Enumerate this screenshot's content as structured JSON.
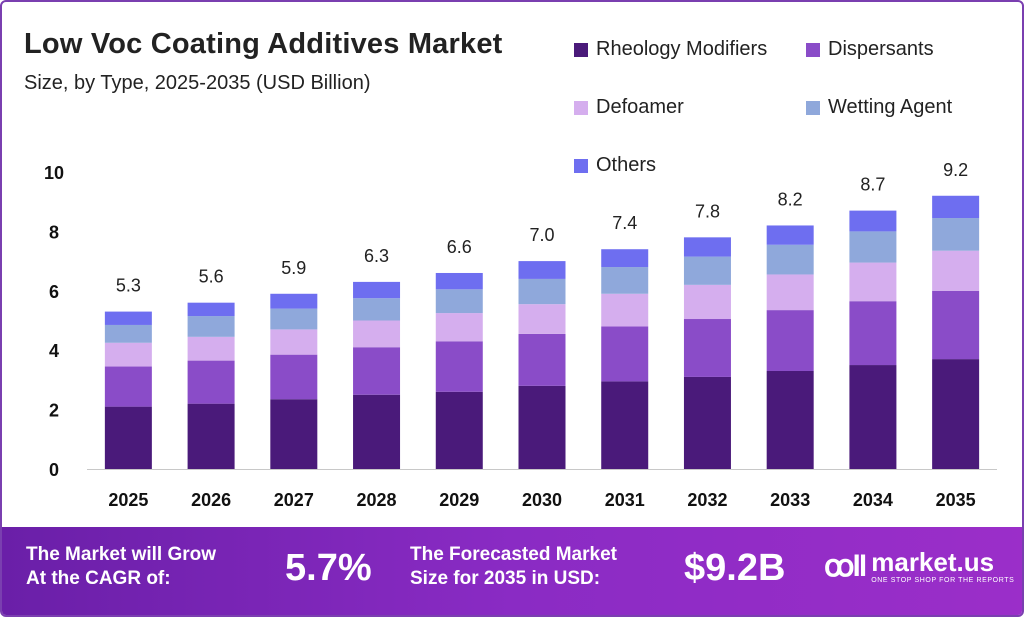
{
  "header": {
    "title": "Low Voc Coating Additives Market",
    "subtitle": "Size, by Type, 2025-2035 (USD Billion)"
  },
  "chart_data": {
    "type": "bar",
    "stacked": true,
    "categories": [
      "2025",
      "2026",
      "2027",
      "2028",
      "2029",
      "2030",
      "2031",
      "2032",
      "2033",
      "2034",
      "2035"
    ],
    "totals": [
      5.3,
      5.6,
      5.9,
      6.3,
      6.6,
      7.0,
      7.4,
      7.8,
      8.2,
      8.7,
      9.2
    ],
    "total_labels": [
      "5.3",
      "5.6",
      "5.9",
      "6.3",
      "6.6",
      "7.0",
      "7.4",
      "7.8",
      "8.2",
      "8.7",
      "9.2"
    ],
    "series": [
      {
        "name": "Rheology Modifiers",
        "color": "#4a1a7a",
        "values": [
          2.1,
          2.2,
          2.35,
          2.5,
          2.6,
          2.8,
          2.95,
          3.1,
          3.3,
          3.5,
          3.7
        ]
      },
      {
        "name": "Dispersants",
        "color": "#8a4cc8",
        "values": [
          1.35,
          1.45,
          1.5,
          1.6,
          1.7,
          1.75,
          1.85,
          1.95,
          2.05,
          2.15,
          2.3
        ]
      },
      {
        "name": "Defoamer",
        "color": "#d5aeee",
        "values": [
          0.8,
          0.8,
          0.85,
          0.9,
          0.95,
          1.0,
          1.1,
          1.15,
          1.2,
          1.3,
          1.35
        ]
      },
      {
        "name": "Wetting Agent",
        "color": "#8fa8db",
        "values": [
          0.6,
          0.7,
          0.7,
          0.75,
          0.8,
          0.85,
          0.9,
          0.95,
          1.0,
          1.05,
          1.1
        ]
      },
      {
        "name": "Others",
        "color": "#6e6ef0",
        "values": [
          0.45,
          0.45,
          0.5,
          0.55,
          0.55,
          0.6,
          0.6,
          0.65,
          0.65,
          0.7,
          0.75
        ]
      }
    ],
    "ylim": [
      0,
      10
    ],
    "yticks": [
      0,
      2,
      4,
      6,
      8,
      10
    ],
    "ytick_labels": [
      "0",
      "2",
      "4",
      "6",
      "8",
      "10"
    ],
    "grid": false,
    "legend_position": "top-right"
  },
  "footer": {
    "cagr_label_line1": "The Market will Grow",
    "cagr_label_line2": "At the CAGR of:",
    "cagr_value": "5.7%",
    "forecast_label_line1": "The Forecasted Market",
    "forecast_label_line2": "Size for 2035 in USD:",
    "forecast_value": "$9.2B",
    "brand_name": "market.us",
    "brand_tagline": "ONE STOP SHOP FOR THE REPORTS"
  }
}
